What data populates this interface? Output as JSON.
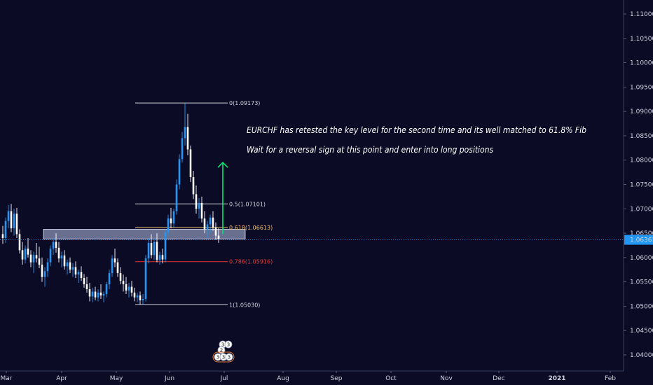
{
  "colors": {
    "background": "#0b0b26",
    "bull": "#2196f3",
    "bear": "#ffffff",
    "fib_neutral": "#d1d4dc",
    "fib_618": "#f5c36b",
    "fib_786": "#e53935",
    "zone_fill": "#b8c3e6",
    "arrow": "#00e676",
    "current_price": "#2196f3",
    "axis_text": "#cfd3e0"
  },
  "chart_data": {
    "type": "candlestick",
    "x_axis_labels": [
      "Mar",
      "Apr",
      "May",
      "Jun",
      "Jul",
      "Aug",
      "Sep",
      "Oct",
      "Nov",
      "Dec",
      "2021",
      "Feb"
    ],
    "y_axis_labels": [
      "1.11000",
      "1.10500",
      "1.10000",
      "1.09500",
      "1.09000",
      "1.08500",
      "1.08000",
      "1.07500",
      "1.07000",
      "1.06500",
      "1.06000",
      "1.05500",
      "1.05000",
      "1.04500",
      "1.04000"
    ],
    "ylim": [
      1.0375,
      1.1135
    ],
    "current_price": {
      "value": 1.06363,
      "label": "1.06363"
    },
    "fib_levels": [
      {
        "ratio": "0",
        "price": 1.09173,
        "label": "0(1.09173)",
        "color": "#d1d4dc"
      },
      {
        "ratio": "0.5",
        "price": 1.07101,
        "label": "0.5(1.07101)",
        "color": "#d1d4dc"
      },
      {
        "ratio": "0.618",
        "price": 1.06613,
        "label": "0.618(1.06613)",
        "color": "#f5c36b"
      },
      {
        "ratio": "0.786",
        "price": 1.05916,
        "label": "0.786(1.05916)",
        "color": "#e53935"
      },
      {
        "ratio": "1",
        "price": 1.0503,
        "label": "1(1.05030)",
        "color": "#d1d4dc"
      }
    ],
    "support_zone": {
      "price_top": 1.0658,
      "price_bottom": 1.0638
    },
    "target_arrow": {
      "from_price": 1.0648,
      "to_price": 1.0795
    },
    "annotations": [
      "EURCHF has retested the key level for the second time and its well matched to 61.8% Fib",
      "Wait for a reversal sign at this point and enter into long positions"
    ],
    "event_badges": [
      "3",
      "3",
      "2",
      "3",
      "3",
      "3"
    ],
    "candles": [
      {
        "o": 1.0648,
        "h": 1.0665,
        "l": 1.0628,
        "c": 1.064
      },
      {
        "o": 1.064,
        "h": 1.0682,
        "l": 1.063,
        "c": 1.0675
      },
      {
        "o": 1.0675,
        "h": 1.0708,
        "l": 1.066,
        "c": 1.0695
      },
      {
        "o": 1.0695,
        "h": 1.071,
        "l": 1.0652,
        "c": 1.066
      },
      {
        "o": 1.066,
        "h": 1.07,
        "l": 1.0645,
        "c": 1.069
      },
      {
        "o": 1.069,
        "h": 1.0702,
        "l": 1.064,
        "c": 1.0648
      },
      {
        "o": 1.0648,
        "h": 1.0658,
        "l": 1.0608,
        "c": 1.0615
      },
      {
        "o": 1.0615,
        "h": 1.0632,
        "l": 1.0585,
        "c": 1.0596
      },
      {
        "o": 1.0596,
        "h": 1.0625,
        "l": 1.0588,
        "c": 1.0618
      },
      {
        "o": 1.0618,
        "h": 1.064,
        "l": 1.06,
        "c": 1.0606
      },
      {
        "o": 1.0606,
        "h": 1.0615,
        "l": 1.058,
        "c": 1.059
      },
      {
        "o": 1.059,
        "h": 1.0612,
        "l": 1.0568,
        "c": 1.0605
      },
      {
        "o": 1.0605,
        "h": 1.063,
        "l": 1.059,
        "c": 1.0598
      },
      {
        "o": 1.0598,
        "h": 1.0622,
        "l": 1.0578,
        "c": 1.0585
      },
      {
        "o": 1.0585,
        "h": 1.06,
        "l": 1.055,
        "c": 1.056
      },
      {
        "o": 1.056,
        "h": 1.058,
        "l": 1.054,
        "c": 1.0572
      },
      {
        "o": 1.0572,
        "h": 1.0598,
        "l": 1.056,
        "c": 1.059
      },
      {
        "o": 1.059,
        "h": 1.0625,
        "l": 1.0582,
        "c": 1.0618
      },
      {
        "o": 1.0618,
        "h": 1.064,
        "l": 1.0605,
        "c": 1.0632
      },
      {
        "o": 1.0632,
        "h": 1.065,
        "l": 1.061,
        "c": 1.062
      },
      {
        "o": 1.062,
        "h": 1.0632,
        "l": 1.059,
        "c": 1.0598
      },
      {
        "o": 1.0598,
        "h": 1.0612,
        "l": 1.058,
        "c": 1.0604
      },
      {
        "o": 1.0604,
        "h": 1.0615,
        "l": 1.0575,
        "c": 1.0582
      },
      {
        "o": 1.0582,
        "h": 1.0596,
        "l": 1.0565,
        "c": 1.059
      },
      {
        "o": 1.059,
        "h": 1.06,
        "l": 1.0568,
        "c": 1.0575
      },
      {
        "o": 1.0575,
        "h": 1.0588,
        "l": 1.056,
        "c": 1.058
      },
      {
        "o": 1.058,
        "h": 1.0592,
        "l": 1.0558,
        "c": 1.0565
      },
      {
        "o": 1.0565,
        "h": 1.0575,
        "l": 1.0548,
        "c": 1.057
      },
      {
        "o": 1.057,
        "h": 1.0582,
        "l": 1.0552,
        "c": 1.0558
      },
      {
        "o": 1.0558,
        "h": 1.0566,
        "l": 1.0538,
        "c": 1.0545
      },
      {
        "o": 1.0545,
        "h": 1.056,
        "l": 1.0528,
        "c": 1.0535
      },
      {
        "o": 1.0535,
        "h": 1.0548,
        "l": 1.051,
        "c": 1.052
      },
      {
        "o": 1.052,
        "h": 1.0538,
        "l": 1.0508,
        "c": 1.053
      },
      {
        "o": 1.053,
        "h": 1.054,
        "l": 1.0512,
        "c": 1.0518
      },
      {
        "o": 1.0518,
        "h": 1.0535,
        "l": 1.051,
        "c": 1.0528
      },
      {
        "o": 1.0528,
        "h": 1.0545,
        "l": 1.0515,
        "c": 1.0522
      },
      {
        "o": 1.0522,
        "h": 1.053,
        "l": 1.0508,
        "c": 1.0525
      },
      {
        "o": 1.0525,
        "h": 1.055,
        "l": 1.0518,
        "c": 1.0545
      },
      {
        "o": 1.0545,
        "h": 1.0575,
        "l": 1.0535,
        "c": 1.0568
      },
      {
        "o": 1.0568,
        "h": 1.0605,
        "l": 1.056,
        "c": 1.0598
      },
      {
        "o": 1.0598,
        "h": 1.0618,
        "l": 1.058,
        "c": 1.059
      },
      {
        "o": 1.059,
        "h": 1.0598,
        "l": 1.056,
        "c": 1.0568
      },
      {
        "o": 1.0568,
        "h": 1.058,
        "l": 1.0545,
        "c": 1.0552
      },
      {
        "o": 1.0552,
        "h": 1.0565,
        "l": 1.053,
        "c": 1.0545
      },
      {
        "o": 1.0545,
        "h": 1.056,
        "l": 1.0525,
        "c": 1.0532
      },
      {
        "o": 1.0532,
        "h": 1.0548,
        "l": 1.0518,
        "c": 1.054
      },
      {
        "o": 1.054,
        "h": 1.0552,
        "l": 1.052,
        "c": 1.0528
      },
      {
        "o": 1.0528,
        "h": 1.0538,
        "l": 1.051,
        "c": 1.0518
      },
      {
        "o": 1.0518,
        "h": 1.0528,
        "l": 1.0508,
        "c": 1.0522
      },
      {
        "o": 1.0522,
        "h": 1.053,
        "l": 1.0504,
        "c": 1.0512
      },
      {
        "o": 1.0512,
        "h": 1.0525,
        "l": 1.0503,
        "c": 1.0515
      },
      {
        "o": 1.0515,
        "h": 1.0605,
        "l": 1.051,
        "c": 1.0598
      },
      {
        "o": 1.0598,
        "h": 1.064,
        "l": 1.0588,
        "c": 1.063
      },
      {
        "o": 1.063,
        "h": 1.0648,
        "l": 1.0598,
        "c": 1.0605
      },
      {
        "o": 1.0605,
        "h": 1.064,
        "l": 1.0595,
        "c": 1.0632
      },
      {
        "o": 1.0632,
        "h": 1.065,
        "l": 1.059,
        "c": 1.0595
      },
      {
        "o": 1.0595,
        "h": 1.0612,
        "l": 1.0585,
        "c": 1.0605
      },
      {
        "o": 1.0605,
        "h": 1.0618,
        "l": 1.0588,
        "c": 1.0596
      },
      {
        "o": 1.0596,
        "h": 1.0658,
        "l": 1.059,
        "c": 1.0652
      },
      {
        "o": 1.0652,
        "h": 1.0688,
        "l": 1.0645,
        "c": 1.068
      },
      {
        "o": 1.068,
        "h": 1.0702,
        "l": 1.066,
        "c": 1.067
      },
      {
        "o": 1.067,
        "h": 1.07,
        "l": 1.0662,
        "c": 1.0695
      },
      {
        "o": 1.0695,
        "h": 1.076,
        "l": 1.0688,
        "c": 1.075
      },
      {
        "o": 1.075,
        "h": 1.0812,
        "l": 1.074,
        "c": 1.0802
      },
      {
        "o": 1.0802,
        "h": 1.0858,
        "l": 1.0795,
        "c": 1.0845
      },
      {
        "o": 1.0845,
        "h": 1.0917,
        "l": 1.083,
        "c": 1.0868
      },
      {
        "o": 1.0868,
        "h": 1.0895,
        "l": 1.081,
        "c": 1.0822
      },
      {
        "o": 1.0822,
        "h": 1.083,
        "l": 1.0755,
        "c": 1.0765
      },
      {
        "o": 1.0765,
        "h": 1.0778,
        "l": 1.072,
        "c": 1.073
      },
      {
        "o": 1.073,
        "h": 1.0748,
        "l": 1.069,
        "c": 1.07
      },
      {
        "o": 1.07,
        "h": 1.0722,
        "l": 1.068,
        "c": 1.0712
      },
      {
        "o": 1.0712,
        "h": 1.0725,
        "l": 1.0672,
        "c": 1.068
      },
      {
        "o": 1.068,
        "h": 1.0695,
        "l": 1.065,
        "c": 1.0658
      },
      {
        "o": 1.0658,
        "h": 1.0675,
        "l": 1.064,
        "c": 1.0668
      },
      {
        "o": 1.0668,
        "h": 1.0688,
        "l": 1.065,
        "c": 1.0682
      },
      {
        "o": 1.0682,
        "h": 1.0695,
        "l": 1.0655,
        "c": 1.0662
      },
      {
        "o": 1.0662,
        "h": 1.0672,
        "l": 1.0636,
        "c": 1.0645
      },
      {
        "o": 1.0645,
        "h": 1.066,
        "l": 1.063,
        "c": 1.0638
      }
    ]
  }
}
